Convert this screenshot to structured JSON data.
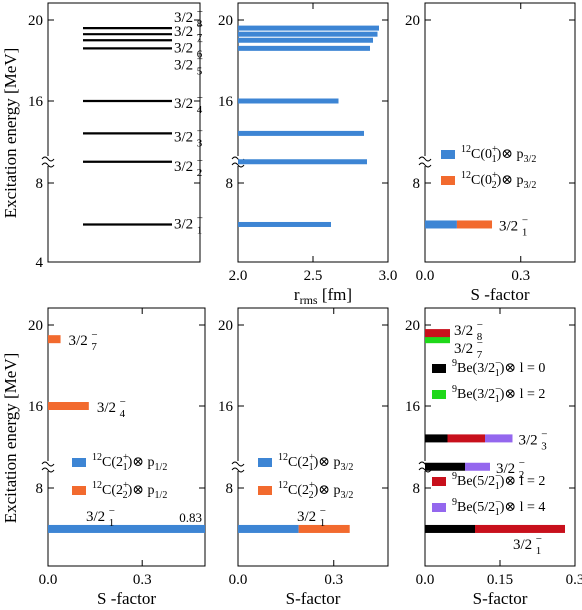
{
  "y_axis_label": "Excitation energy [MeV]",
  "colors": {
    "blue": "#3d85d4",
    "orange": "#f26a2e",
    "red": "#c8101c",
    "green": "#1fd81a",
    "black": "#000000",
    "purple": "#9467ee"
  },
  "chart_data": [
    {
      "id": "levels",
      "type": "bar",
      "ylabel": "Excitation energy [MeV]",
      "ylim": [
        4,
        21
      ],
      "yticks": [
        "4",
        "8",
        "16",
        "20"
      ],
      "axis_break": [
        10,
        11.5
      ],
      "levels": [
        {
          "label_base": "3/2",
          "sup": "−",
          "sub": "1",
          "E": 5.9
        },
        {
          "label_base": "3/2",
          "sup": "−",
          "sub": "2",
          "E": 13.0
        },
        {
          "label_base": "3/2",
          "sup": "−",
          "sub": "3",
          "E": 14.4
        },
        {
          "label_base": "3/2",
          "sup": "−",
          "sub": "4",
          "E": 16.0
        },
        {
          "label_base": "3/2",
          "sup": "−",
          "sub": "5",
          "E": 18.6
        },
        {
          "label_base": "3/2",
          "sup": "−",
          "sub": "6",
          "E": 19.0
        },
        {
          "label_base": "3/2",
          "sup": "−",
          "sub": "7",
          "E": 19.3
        },
        {
          "label_base": "3/2",
          "sup": "−",
          "sub": "8",
          "E": 19.6
        }
      ]
    },
    {
      "id": "rrms",
      "type": "bar",
      "xlabel_base": "r",
      "xlabel_sub": "rms",
      "xlabel_unit": " [fm]",
      "xlim": [
        2.0,
        3.0
      ],
      "xticks": [
        "2.0",
        "2.5",
        "3.0"
      ],
      "yticks": [
        "8",
        "16",
        "20"
      ],
      "bars": [
        {
          "E": 5.9,
          "value": 2.62
        },
        {
          "E": 13.0,
          "value": 2.86
        },
        {
          "E": 14.4,
          "value": 2.84
        },
        {
          "E": 16.0,
          "value": 2.67
        },
        {
          "E": 18.6,
          "value": 2.88
        },
        {
          "E": 19.0,
          "value": 2.9
        },
        {
          "E": 19.3,
          "value": 2.93
        },
        {
          "E": 19.6,
          "value": 2.94
        }
      ]
    },
    {
      "id": "s0",
      "type": "bar",
      "xlabel": "S -factor",
      "xlim": [
        0,
        0.47
      ],
      "xticks": [
        "0.0",
        "0.3"
      ],
      "yticks": [
        "8",
        "20"
      ],
      "legend": [
        {
          "pre": "12",
          "core": "C(0",
          "sup": "+",
          "sub": "1",
          "post": ")⊗ p",
          "psub": "3/2",
          "color": "blue"
        },
        {
          "pre": "12",
          "core": "C(0",
          "sup": "+",
          "sub": "2",
          "post": ")⊗ p",
          "psub": "3/2",
          "color": "orange"
        }
      ],
      "bars": [
        {
          "E": 5.9,
          "segments": [
            {
              "value": 0.1,
              "color": "blue"
            },
            {
              "value": 0.11,
              "color": "orange"
            }
          ],
          "label": {
            "base": "3/2",
            "sup": "−",
            "sub": "1"
          }
        }
      ]
    },
    {
      "id": "s2p12",
      "type": "bar",
      "xlabel": "S -factor",
      "ylabel": "Excitation energy [MeV]",
      "xlim": [
        0,
        0.5
      ],
      "xticks": [
        "0.0",
        "0.3"
      ],
      "yticks": [
        "8",
        "16",
        "20"
      ],
      "legend": [
        {
          "pre": "12",
          "core": "C(2",
          "sup": "+",
          "sub": "1",
          "post": ")⊗ p",
          "psub": "1/2",
          "color": "blue"
        },
        {
          "pre": "12",
          "core": "C(2",
          "sup": "+",
          "sub": "2",
          "post": ")⊗ p",
          "psub": "1/2",
          "color": "orange"
        }
      ],
      "bars": [
        {
          "E": 5.9,
          "segments": [
            {
              "value": 0.5,
              "color": "blue"
            }
          ],
          "label": {
            "base": "3/2",
            "sup": "−",
            "sub": "1"
          },
          "annot": "0.83"
        },
        {
          "E": 16.0,
          "segments": [
            {
              "value": 0.13,
              "color": "orange"
            }
          ],
          "label": {
            "base": "3/2",
            "sup": "−",
            "sub": "4"
          }
        },
        {
          "E": 19.3,
          "segments": [
            {
              "value": 0.04,
              "color": "orange"
            }
          ],
          "label": {
            "base": "3/2",
            "sup": "−",
            "sub": "7"
          }
        }
      ]
    },
    {
      "id": "s2p32",
      "type": "bar",
      "xlabel": "S-factor",
      "xlim": [
        0,
        0.47
      ],
      "xticks": [
        "0.0",
        "0.3"
      ],
      "yticks": [
        "8",
        "16",
        "20"
      ],
      "legend": [
        {
          "pre": "12",
          "core": "C(2",
          "sup": "+",
          "sub": "1",
          "post": ")⊗ p",
          "psub": "3/2",
          "color": "blue"
        },
        {
          "pre": "12",
          "core": "C(2",
          "sup": "+",
          "sub": "2",
          "post": ")⊗ p",
          "psub": "3/2",
          "color": "orange"
        }
      ],
      "bars": [
        {
          "E": 5.9,
          "segments": [
            {
              "value": 0.19,
              "color": "blue"
            },
            {
              "value": 0.16,
              "color": "orange"
            }
          ],
          "label": {
            "base": "3/2",
            "sup": "−",
            "sub": "1"
          }
        }
      ]
    },
    {
      "id": "sBe",
      "type": "bar",
      "xlabel": "S-factor",
      "xlim": [
        0,
        0.3
      ],
      "xticks": [
        "0.0",
        "0.15",
        "0.3"
      ],
      "yticks": [
        "8",
        "16",
        "20"
      ],
      "legend": [
        {
          "pre": "9",
          "core": "Be(3/2",
          "sup": "−",
          "sub": "1",
          "post": ")⊗ l = 0",
          "psub": "",
          "color": "black"
        },
        {
          "pre": "9",
          "core": "Be(3/2",
          "sup": "−",
          "sub": "1",
          "post": ")⊗ l = 2",
          "psub": "",
          "color": "green"
        },
        {
          "pre": "9",
          "core": "Be(5/2",
          "sup": "−",
          "sub": "1",
          "post": ")⊗ l = 2",
          "psub": "",
          "color": "red"
        },
        {
          "pre": "9",
          "core": "Be(5/2",
          "sup": "−",
          "sub": "1",
          "post": ")⊗ l = 4",
          "psub": "",
          "color": "purple"
        }
      ],
      "bars": [
        {
          "E": 5.9,
          "segments": [
            {
              "value": 0.1,
              "color": "black"
            },
            {
              "value": 0.18,
              "color": "red"
            }
          ],
          "label": {
            "base": "3/2",
            "sup": "−",
            "sub": "1"
          }
        },
        {
          "E": 13.0,
          "segments": [
            {
              "value": 0.08,
              "color": "black"
            },
            {
              "value": 0.05,
              "color": "purple"
            }
          ],
          "label": {
            "base": "3/2",
            "sup": "−",
            "sub": "2"
          }
        },
        {
          "E": 14.4,
          "segments": [
            {
              "value": 0.045,
              "color": "black"
            },
            {
              "value": 0.075,
              "color": "red"
            },
            {
              "value": 0.055,
              "color": "purple"
            }
          ],
          "label": {
            "base": "3/2",
            "sup": "−",
            "sub": "3"
          }
        },
        {
          "E": 19.3,
          "segments": [
            {
              "value": 0.05,
              "color": "green"
            }
          ],
          "label": {
            "base": "3/2",
            "sup": "−",
            "sub": "7"
          }
        },
        {
          "E": 19.6,
          "segments": [
            {
              "value": 0.05,
              "color": "red"
            }
          ],
          "label": {
            "base": "3/2",
            "sup": "−",
            "sub": "8"
          }
        }
      ]
    }
  ]
}
